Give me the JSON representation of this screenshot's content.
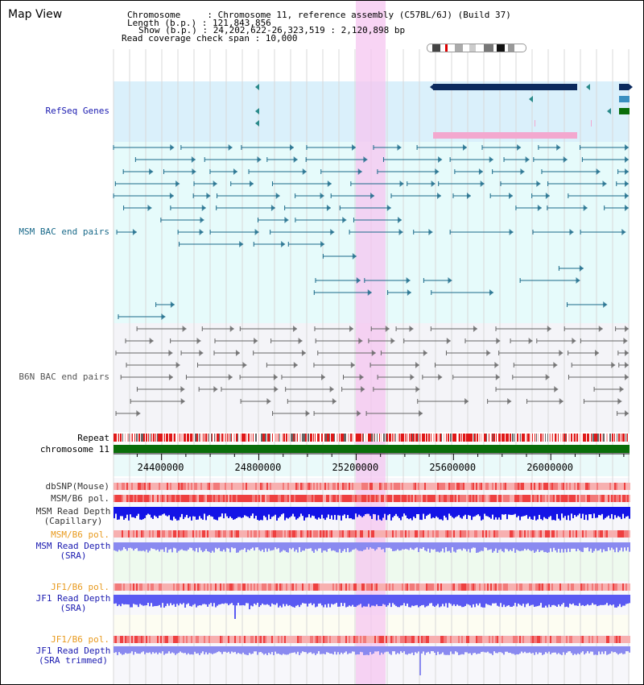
{
  "header": {
    "title": "Map View",
    "info_lines": [
      "Chromosome     : Chromosome 11, reference assembly (C57BL/6J) (Build 37)",
      "Length (b.p.) : 121,843,856",
      "Show (b.p.) : 24,202,622-26,323,519 : 2,120,898 bp",
      "Read coverage check span : 10,000"
    ]
  },
  "region": {
    "start": 24202622,
    "end": 26323519,
    "span_bp": 2120898,
    "highlight": [
      25205000,
      25325000
    ]
  },
  "axis_ticks": [
    24400000,
    24800000,
    25200000,
    25600000,
    26000000
  ],
  "tracks": {
    "refseq": {
      "label": "RefSeq Genes",
      "color": "#1a1ab0"
    },
    "msm_bac": {
      "label": "MSM BAC end pairs",
      "color": "#1a6a8a"
    },
    "b6n_bac": {
      "label": "B6N BAC end pairs",
      "color": "#555555"
    },
    "repeat": {
      "label": "Repeat"
    },
    "chromosome": {
      "label": "chromosome 11"
    },
    "dbsnp": {
      "label": "dbSNP(Mouse)"
    },
    "msm_b6_pol": {
      "label": "MSM/B6 pol."
    },
    "msm_depth_cap": {
      "label": "MSM Read Depth\n(Capillary)",
      "color": "#1a1ab0"
    },
    "msm_b6_pol2": {
      "label": "MSM/B6 pol.",
      "color": "#e89a1e"
    },
    "msm_depth_sra": {
      "label": "MSM Read Depth\n(SRA)",
      "color": "#1a1ab0"
    },
    "jf1_b6_pol": {
      "label": "JF1/B6 pol.",
      "color": "#e89a1e"
    },
    "jf1_depth_sra": {
      "label": "JF1 Read Depth\n(SRA)",
      "color": "#1a1ab0"
    },
    "jf1_b6_pol2": {
      "label": "JF1/B6 pol.",
      "color": "#e89a1e"
    },
    "jf1_depth_trim": {
      "label": "JF1 Read Depth\n(SRA trimmed)",
      "color": "#1a1ab0"
    }
  },
  "colors": {
    "highlight": "#f5c6f0",
    "refseq_bg": "#daf0fb",
    "msm_bg": "#e6fbfb",
    "b6n_bg": "#f4f4f8",
    "gene_dark": "#0b2a5e",
    "gene_pink": "#f3a8cf",
    "chromosome_bar": "#0a6e0a",
    "depth_dark": "#1414e6",
    "depth_light": "#8a8af0",
    "pol_red": "#ee4040",
    "pol_light": "#f7b0b0"
  }
}
